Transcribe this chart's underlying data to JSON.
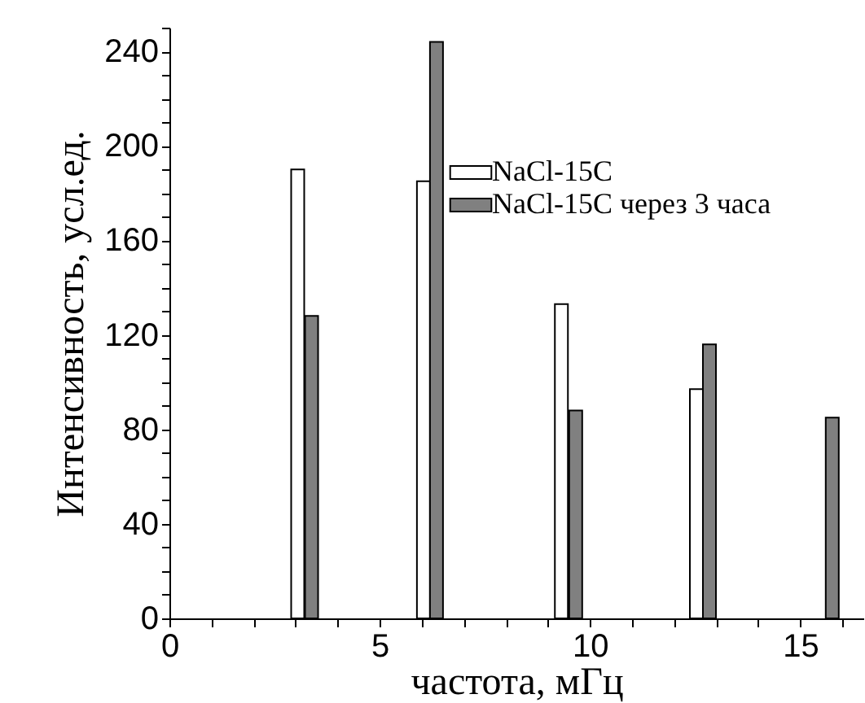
{
  "chart_data": {
    "type": "bar",
    "xlabel": "частота, мГц",
    "ylabel": "Интенсивность, усл.ед.",
    "series": [
      {
        "name": "NaCl-15C",
        "color": "#ffffff",
        "x": [
          3.05,
          6.04,
          9.32,
          12.53
        ],
        "values": [
          190,
          185,
          133,
          97
        ]
      },
      {
        "name": "NaCl-15C через 3 часа",
        "color": "#808080",
        "x": [
          3.38,
          6.35,
          9.66,
          12.84,
          15.76
        ],
        "values": [
          128,
          244,
          88,
          116,
          85
        ]
      }
    ],
    "xlim": [
      0,
      16.5
    ],
    "xticks": [
      0,
      {
        "value": 1,
        "label": null
      },
      {
        "value": 2,
        "label": null
      },
      {
        "value": 3,
        "label": null
      },
      {
        "value": 4,
        "label": null
      },
      5,
      {
        "value": 6,
        "label": null
      },
      {
        "value": 7,
        "label": null
      },
      {
        "value": 8,
        "label": null
      },
      {
        "value": 9,
        "label": null
      },
      10,
      {
        "value": 11,
        "label": null
      },
      {
        "value": 12,
        "label": null
      },
      {
        "value": 13,
        "label": null
      },
      {
        "value": 14,
        "label": null
      },
      15,
      {
        "value": 16,
        "label": null
      }
    ],
    "ylim": [
      0,
      250
    ],
    "yticks": [
      0,
      {
        "value": 10,
        "label": null
      },
      {
        "value": 20,
        "label": null
      },
      {
        "value": 30,
        "label": null
      },
      40,
      {
        "value": 50,
        "label": null
      },
      {
        "value": 60,
        "label": null
      },
      {
        "value": 70,
        "label": null
      },
      80,
      {
        "value": 90,
        "label": null
      },
      {
        "value": 100,
        "label": null
      },
      {
        "value": 110,
        "label": null
      },
      120,
      {
        "value": 130,
        "label": null
      },
      {
        "value": 140,
        "label": null
      },
      {
        "value": 150,
        "label": null
      },
      160,
      {
        "value": 170,
        "label": null
      },
      {
        "value": 180,
        "label": null
      },
      {
        "value": 190,
        "label": null
      },
      200,
      {
        "value": 210,
        "label": null
      },
      {
        "value": 220,
        "label": null
      },
      {
        "value": 230,
        "label": null
      },
      240,
      {
        "value": 250,
        "label": null
      }
    ],
    "grid": false,
    "legend": "top right"
  }
}
